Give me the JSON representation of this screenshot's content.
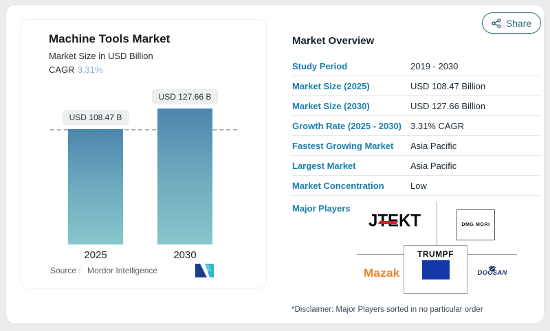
{
  "share": {
    "label": "Share"
  },
  "chart_panel": {
    "title": "Machine Tools Market",
    "subtitle": "Market Size in USD Billion",
    "cagr_label": "CAGR",
    "cagr_value": "3.31%",
    "source_label": "Source :",
    "source_value": "Mordor Intelligence"
  },
  "chart_data": {
    "type": "bar",
    "title": "Machine Tools Market",
    "ylabel": "Market Size in USD Billion",
    "categories": [
      "2025",
      "2030"
    ],
    "values": [
      108.47,
      127.66
    ],
    "value_labels": [
      "USD 108.47 B",
      "USD 127.66 B"
    ],
    "cagr": "3.31%",
    "baseline_dashed_at": 108.47,
    "bar_gradient_top": "#4c85ad",
    "bar_gradient_bottom": "#87c7cc"
  },
  "overview": {
    "heading": "Market Overview",
    "rows": [
      {
        "label": "Study Period",
        "value": "2019 - 2030"
      },
      {
        "label": "Market Size (2025)",
        "value": "USD 108.47 Billion"
      },
      {
        "label": "Market Size (2030)",
        "value": "USD 127.66 Billion"
      },
      {
        "label": "Growth Rate (2025 - 2030)",
        "value": "3.31% CAGR"
      },
      {
        "label": "Fastest Growing Market",
        "value": "Asia Pacific"
      },
      {
        "label": "Largest Market",
        "value": "Asia Pacific"
      },
      {
        "label": "Market Concentration",
        "value": "Low"
      }
    ],
    "major_players_label": "Major Players",
    "players": [
      "JTEKT",
      "DMG MORI",
      "TRUMPF",
      "Mazak",
      "DOOSAN"
    ],
    "disclaimer": "*Disclaimer: Major Players sorted in no particular order"
  },
  "colors": {
    "accent_teal_label": "#1b7ea9",
    "share_outline": "#38697e",
    "bar_top": "#4c85ad",
    "bar_bottom": "#87c7cc",
    "cagr_value_blue": "#8cb3d3",
    "trumpf_blue": "#1537a8",
    "mazak_orange": "#f08223",
    "doosan_navy": "#1c2f63",
    "jtekt_red": "#c8232c",
    "mordor_logo_navy": "#1b3c87",
    "mordor_logo_teal": "#38b6c9"
  }
}
